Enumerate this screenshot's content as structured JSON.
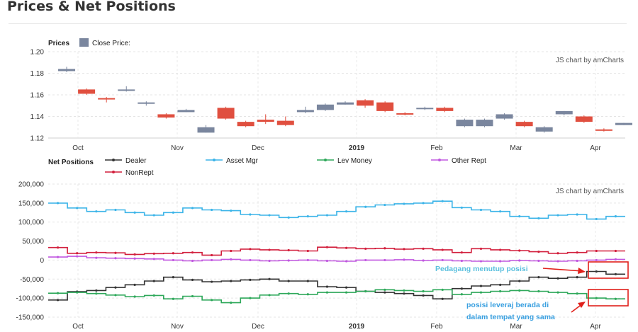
{
  "page": {
    "title": "Prices & Net Positions"
  },
  "chart_data": [
    {
      "type": "candlestick",
      "title": "Prices",
      "legend": [
        {
          "name": "Close Price:",
          "color": "#7a869e"
        }
      ],
      "credit": "JS chart by amCharts",
      "ylim": [
        1.12,
        1.2
      ],
      "yticks": [
        "1.20",
        "1.18",
        "1.16",
        "1.14",
        "1.12"
      ],
      "xticks": [
        "Oct",
        "Nov",
        "Dec",
        "2019",
        "Feb",
        "Mar",
        "Apr"
      ],
      "colors": {
        "up": "#7a869e",
        "down": "#e04f3f"
      },
      "candles": [
        {
          "o": 1.182,
          "c": 1.184,
          "h": 1.186,
          "l": 1.181
        },
        {
          "o": 1.165,
          "c": 1.161,
          "h": 1.166,
          "l": 1.16
        },
        {
          "o": 1.157,
          "c": 1.156,
          "h": 1.158,
          "l": 1.153
        },
        {
          "o": 1.165,
          "c": 1.165,
          "h": 1.168,
          "l": 1.163
        },
        {
          "o": 1.152,
          "c": 1.153,
          "h": 1.154,
          "l": 1.15
        },
        {
          "o": 1.142,
          "c": 1.139,
          "h": 1.143,
          "l": 1.138
        },
        {
          "o": 1.144,
          "c": 1.146,
          "h": 1.147,
          "l": 1.144
        },
        {
          "o": 1.125,
          "c": 1.13,
          "h": 1.132,
          "l": 1.125
        },
        {
          "o": 1.148,
          "c": 1.138,
          "h": 1.149,
          "l": 1.137
        },
        {
          "o": 1.135,
          "c": 1.131,
          "h": 1.136,
          "l": 1.13
        },
        {
          "o": 1.137,
          "c": 1.135,
          "h": 1.142,
          "l": 1.133
        },
        {
          "o": 1.136,
          "c": 1.132,
          "h": 1.14,
          "l": 1.131
        },
        {
          "o": 1.144,
          "c": 1.146,
          "h": 1.149,
          "l": 1.143
        },
        {
          "o": 1.146,
          "c": 1.151,
          "h": 1.152,
          "l": 1.145
        },
        {
          "o": 1.151,
          "c": 1.153,
          "h": 1.154,
          "l": 1.151
        },
        {
          "o": 1.155,
          "c": 1.15,
          "h": 1.156,
          "l": 1.148
        },
        {
          "o": 1.153,
          "c": 1.145,
          "h": 1.154,
          "l": 1.144
        },
        {
          "o": 1.143,
          "c": 1.142,
          "h": 1.144,
          "l": 1.141
        },
        {
          "o": 1.147,
          "c": 1.148,
          "h": 1.149,
          "l": 1.146
        },
        {
          "o": 1.148,
          "c": 1.145,
          "h": 1.149,
          "l": 1.144
        },
        {
          "o": 1.131,
          "c": 1.137,
          "h": 1.138,
          "l": 1.13
        },
        {
          "o": 1.131,
          "c": 1.137,
          "h": 1.138,
          "l": 1.13
        },
        {
          "o": 1.138,
          "c": 1.142,
          "h": 1.143,
          "l": 1.137
        },
        {
          "o": 1.135,
          "c": 1.131,
          "h": 1.136,
          "l": 1.13
        },
        {
          "o": 1.126,
          "c": 1.13,
          "h": 1.131,
          "l": 1.125
        },
        {
          "o": 1.142,
          "c": 1.145,
          "h": 1.145,
          "l": 1.141
        },
        {
          "o": 1.14,
          "c": 1.135,
          "h": 1.141,
          "l": 1.134
        },
        {
          "o": 1.128,
          "c": 1.127,
          "h": 1.129,
          "l": 1.126
        },
        {
          "o": 1.132,
          "c": 1.134,
          "h": 1.134,
          "l": 1.132
        }
      ]
    },
    {
      "type": "line",
      "step": true,
      "title": "Net Positions",
      "credit": "JS chart by amCharts",
      "ylim": [
        -150000,
        200000
      ],
      "yticks": [
        "200,000",
        "150,000",
        "100,000",
        "50,000",
        "0",
        "-50,000",
        "-100,000",
        "-150,000"
      ],
      "xticks": [
        "Oct",
        "Nov",
        "Dec",
        "2019",
        "Feb",
        "Mar",
        "Apr"
      ],
      "series": [
        {
          "name": "Dealer",
          "color": "#333333",
          "values": [
            -105000,
            -83000,
            -80000,
            -72000,
            -65000,
            -55000,
            -45000,
            -52000,
            -57000,
            -55000,
            -52000,
            -50000,
            -55000,
            -55000,
            -70000,
            -72000,
            -82000,
            -85000,
            -88000,
            -93000,
            -102000,
            -75000,
            -68000,
            -65000,
            -55000,
            -45000,
            -48000,
            -45000,
            -30000,
            -37000
          ]
        },
        {
          "name": "Asset Mgr",
          "color": "#3bb4e8",
          "values": [
            150000,
            137000,
            128000,
            132000,
            125000,
            118000,
            125000,
            137000,
            132000,
            130000,
            120000,
            118000,
            112000,
            115000,
            118000,
            128000,
            140000,
            145000,
            148000,
            150000,
            155000,
            138000,
            132000,
            128000,
            115000,
            110000,
            118000,
            120000,
            108000,
            115000
          ]
        },
        {
          "name": "Lev Money",
          "color": "#2ea85a",
          "values": [
            -87000,
            -85000,
            -88000,
            -92000,
            -96000,
            -93000,
            -102000,
            -95000,
            -105000,
            -112000,
            -100000,
            -92000,
            -88000,
            -90000,
            -85000,
            -85000,
            -82000,
            -78000,
            -80000,
            -82000,
            -78000,
            -90000,
            -85000,
            -82000,
            -80000,
            -82000,
            -85000,
            -88000,
            -100000,
            -102000
          ]
        },
        {
          "name": "Other Rept",
          "color": "#c158e0",
          "values": [
            8000,
            10000,
            6000,
            5000,
            4000,
            3000,
            0,
            -2000,
            0,
            2000,
            0,
            -2000,
            -1000,
            0,
            -2000,
            -3000,
            0,
            0,
            1000,
            -1000,
            0,
            -2000,
            -3000,
            -3000,
            -1000,
            -2000,
            -3000,
            -2000,
            0,
            2000
          ]
        },
        {
          "name": "NonRept",
          "color": "#d21f3c",
          "values": [
            33000,
            18000,
            20000,
            19000,
            15000,
            17000,
            18000,
            20000,
            13000,
            24000,
            29000,
            27000,
            26000,
            24000,
            34000,
            32000,
            30000,
            31000,
            29000,
            30000,
            27000,
            20000,
            30000,
            27000,
            25000,
            22000,
            18000,
            20000,
            24000,
            24000
          ]
        }
      ],
      "annotations": [
        {
          "text": "Pedagang menutup posisi",
          "color": "#5bc0de"
        },
        {
          "text": "posisi leveraj  berada di",
          "color": "#3aa0e0"
        },
        {
          "text": "dalam tempat yang sama",
          "color": "#3aa0e0"
        }
      ]
    }
  ]
}
